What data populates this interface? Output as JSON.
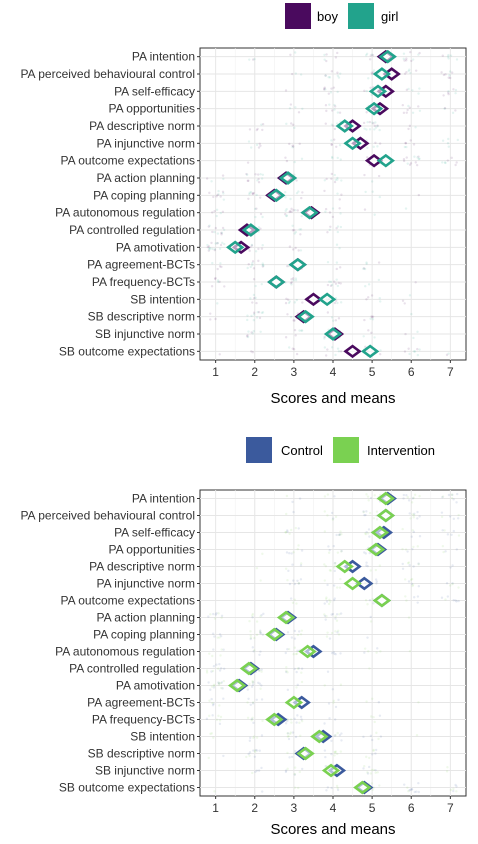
{
  "chart_data": [
    {
      "type": "scatter",
      "xlabel": "Scores and means",
      "xticks": [
        "1",
        "2",
        "3",
        "4",
        "5",
        "6",
        "7"
      ],
      "xlim": [
        0.6,
        7.4
      ],
      "grid": true,
      "legend_position": "top",
      "categories": [
        "PA intention",
        "PA perceived behavioural control",
        "PA self-efficacy",
        "PA opportunities",
        "PA descriptive norm",
        "PA injunctive norm",
        "PA outcome expectations",
        "PA action planning",
        "PA coping planning",
        "PA autonomous regulation",
        "PA controlled regulation",
        "PA amotivation",
        "PA agreement-BCTs",
        "PA frequency-BCTs",
        "SB intention",
        "SB descriptive norm",
        "SB injunctive norm",
        "SB outcome expectations"
      ],
      "series": [
        {
          "name": "boy",
          "color": "#4a0a5e",
          "values": [
            5.35,
            5.5,
            5.35,
            5.2,
            4.5,
            4.7,
            5.05,
            2.8,
            2.5,
            3.45,
            1.8,
            1.65,
            3.1,
            2.55,
            3.5,
            3.25,
            4.05,
            4.5
          ]
        },
        {
          "name": "girl",
          "color": "#22a38c",
          "values": [
            5.4,
            5.25,
            5.15,
            5.05,
            4.3,
            4.5,
            5.35,
            2.85,
            2.55,
            3.4,
            1.9,
            1.5,
            3.1,
            2.55,
            3.85,
            3.3,
            4.0,
            4.95
          ]
        }
      ]
    },
    {
      "type": "scatter",
      "xlabel": "Scores and means",
      "xticks": [
        "1",
        "2",
        "3",
        "4",
        "5",
        "6",
        "7"
      ],
      "xlim": [
        0.6,
        7.4
      ],
      "grid": true,
      "legend_position": "top",
      "categories": [
        "PA intention",
        "PA perceived behavioural control",
        "PA self-efficacy",
        "PA opportunities",
        "PA descriptive norm",
        "PA injunctive norm",
        "PA outcome expectations",
        "PA action planning",
        "PA coping planning",
        "PA autonomous regulation",
        "PA controlled regulation",
        "PA amotivation",
        "PA agreement-BCTs",
        "PA frequency-BCTs",
        "SB intention",
        "SB descriptive norm",
        "SB injunctive norm",
        "SB outcome expectations"
      ],
      "series": [
        {
          "name": "Control",
          "color": "#3b5a9d",
          "values": [
            5.4,
            5.35,
            5.3,
            5.15,
            4.5,
            4.8,
            5.25,
            2.85,
            2.55,
            3.5,
            1.9,
            1.6,
            3.2,
            2.6,
            3.75,
            3.25,
            4.1,
            4.8
          ]
        },
        {
          "name": "Intervention",
          "color": "#7ad151",
          "values": [
            5.35,
            5.35,
            5.2,
            5.1,
            4.3,
            4.5,
            5.25,
            2.8,
            2.5,
            3.35,
            1.85,
            1.55,
            3.0,
            2.5,
            3.65,
            3.3,
            3.95,
            4.75
          ]
        }
      ]
    }
  ]
}
